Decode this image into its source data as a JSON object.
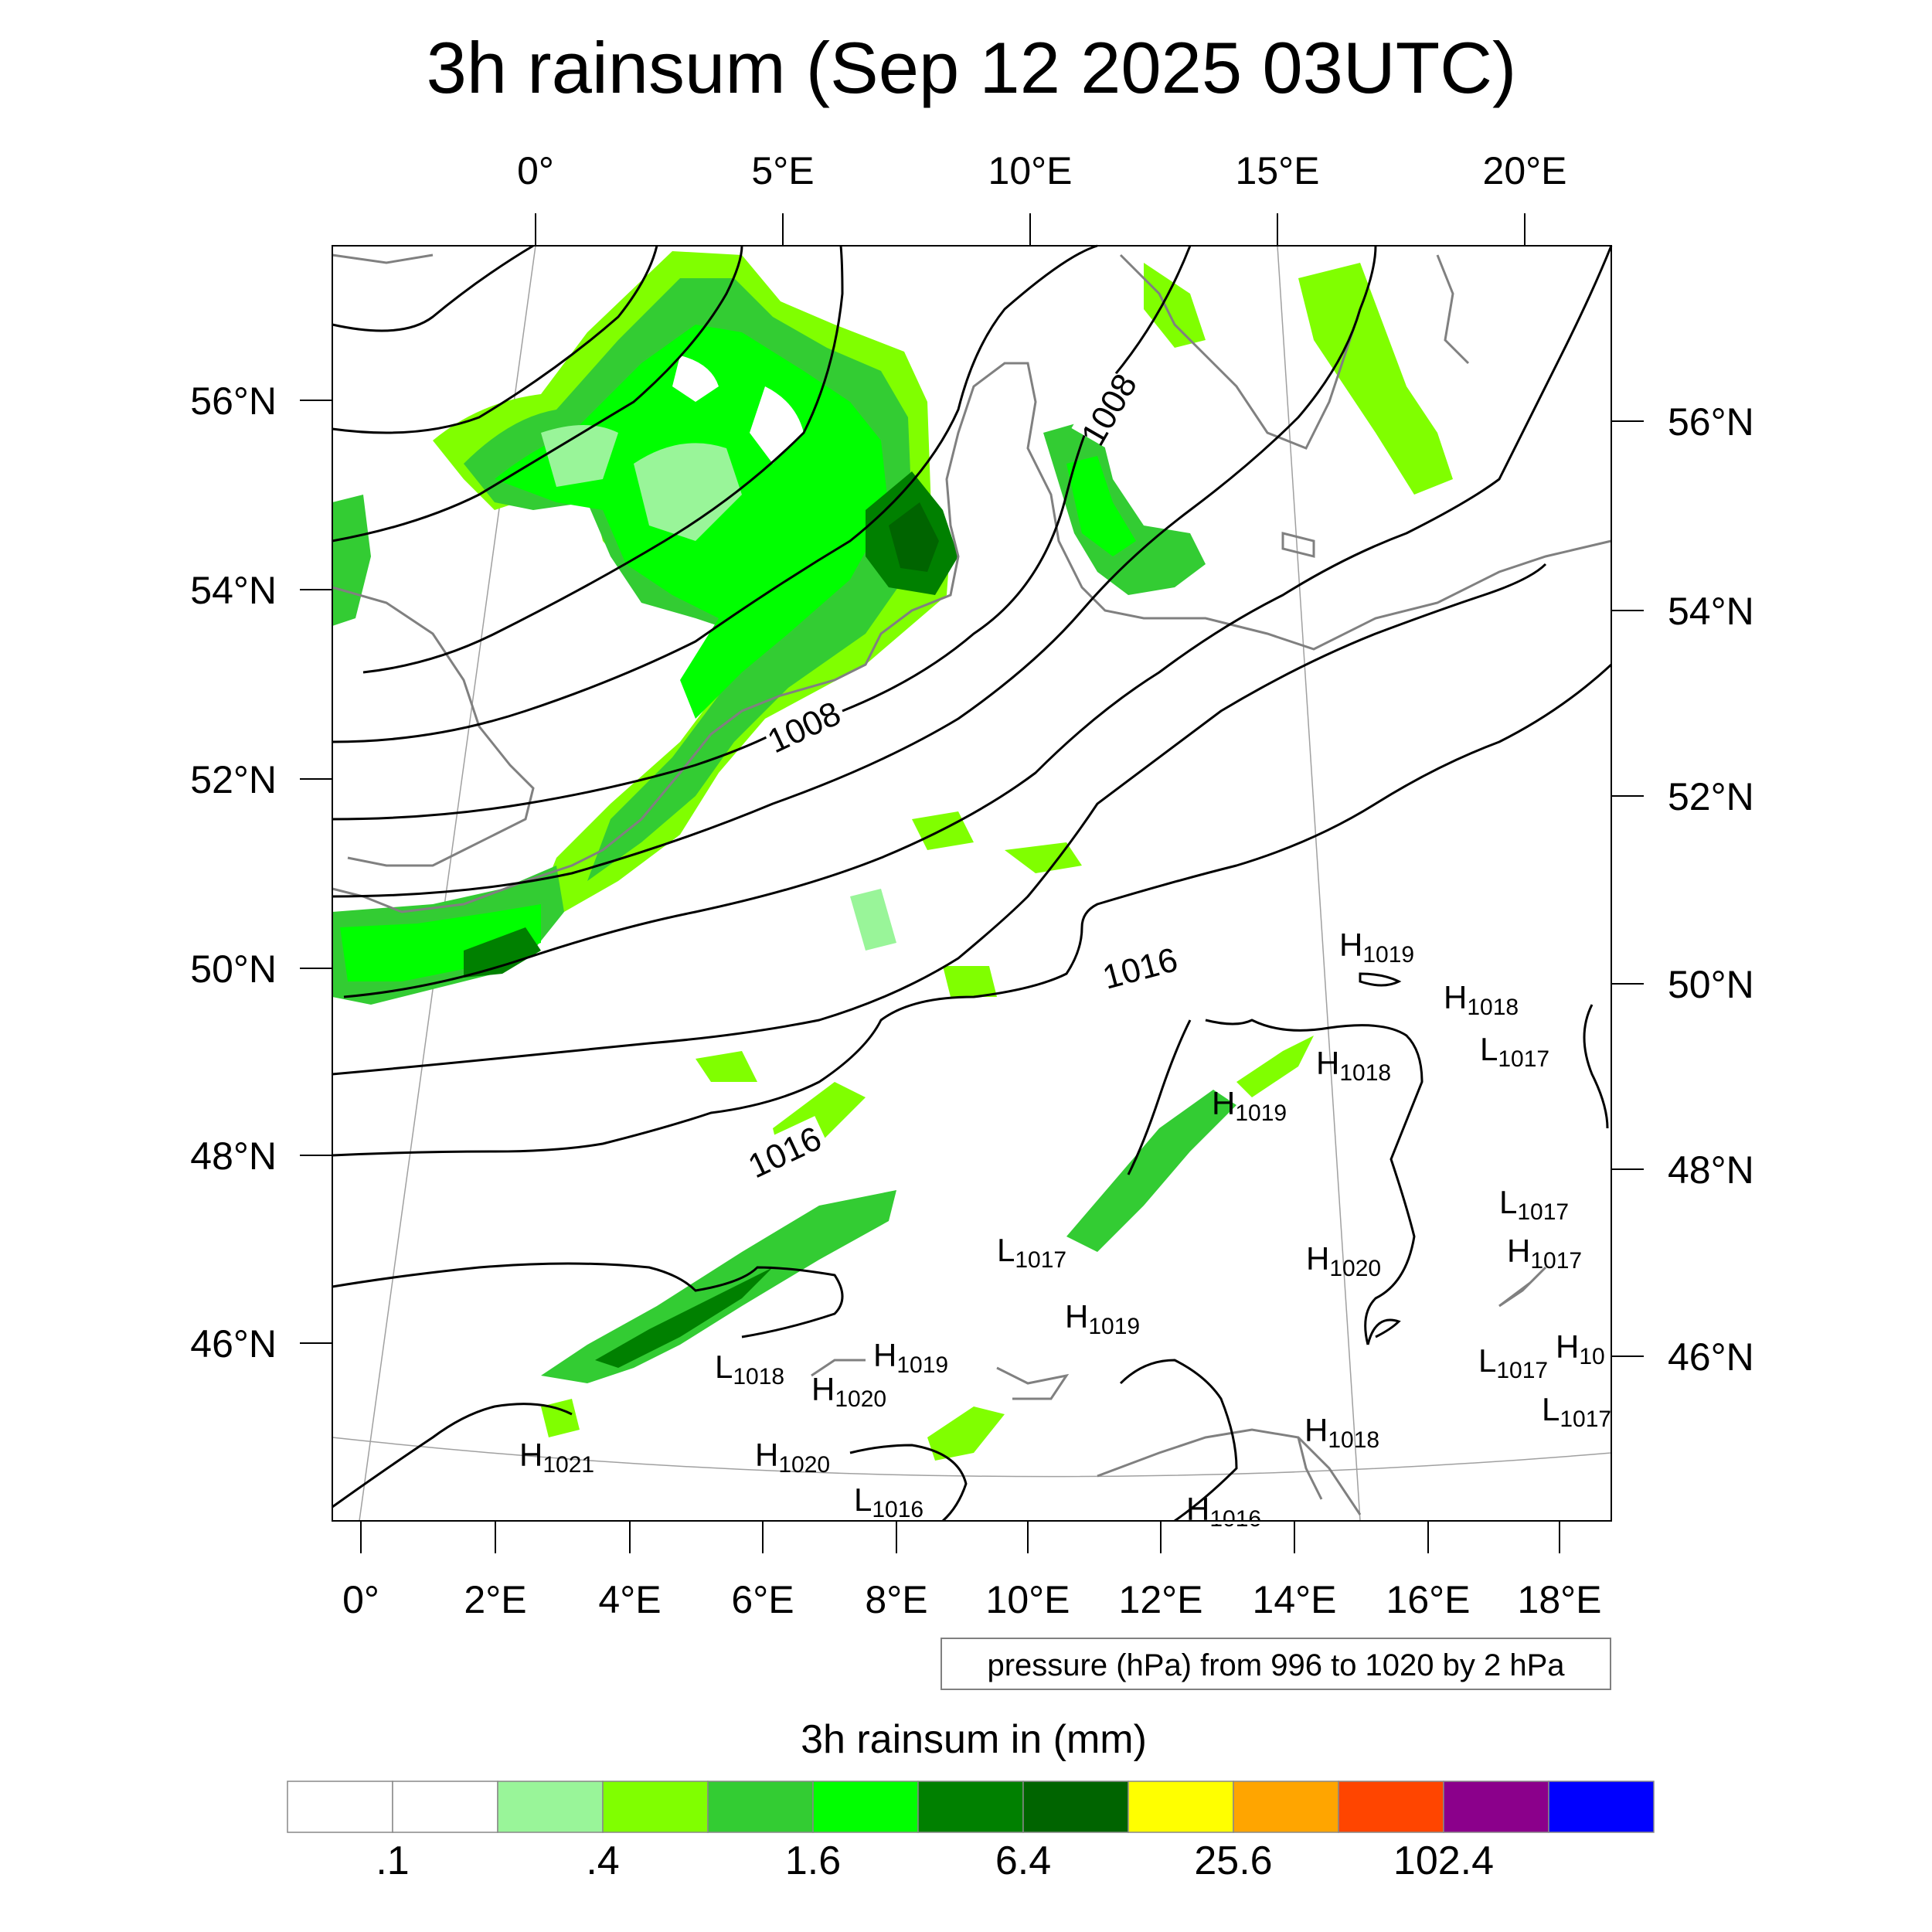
{
  "title": "3h rainsum (Sep 12 2025 03UTC)",
  "top_lon_labels": [
    "0°",
    "5°E",
    "10°E",
    "15°E",
    "20°E"
  ],
  "bottom_lon_labels": [
    "0°",
    "2°E",
    "4°E",
    "6°E",
    "8°E",
    "10°E",
    "12°E",
    "14°E",
    "16°E",
    "18°E"
  ],
  "left_lat_labels": [
    "56°N",
    "54°N",
    "52°N",
    "50°N",
    "48°N",
    "46°N"
  ],
  "right_lat_labels": [
    "56°N",
    "54°N",
    "52°N",
    "50°N",
    "48°N",
    "46°N"
  ],
  "contour_labels": [
    "1008",
    "1008",
    "1016",
    "1016"
  ],
  "pressure_centers": [
    {
      "type": "H",
      "value": "1019"
    },
    {
      "type": "H",
      "value": "1018"
    },
    {
      "type": "L",
      "value": "1017"
    },
    {
      "type": "H",
      "value": "1018"
    },
    {
      "type": "H",
      "value": "1019"
    },
    {
      "type": "L",
      "value": "1017"
    },
    {
      "type": "L",
      "value": "1017"
    },
    {
      "type": "H",
      "value": "1017"
    },
    {
      "type": "H",
      "value": "1020"
    },
    {
      "type": "H",
      "value": "1019"
    },
    {
      "type": "L",
      "value": "1017"
    },
    {
      "type": "H",
      "value": "10"
    },
    {
      "type": "L",
      "value": "1017"
    },
    {
      "type": "H",
      "value": "1019"
    },
    {
      "type": "L",
      "value": "1018"
    },
    {
      "type": "H",
      "value": "1020"
    },
    {
      "type": "H",
      "value": "1018"
    },
    {
      "type": "H",
      "value": "1020"
    },
    {
      "type": "H",
      "value": "1021"
    },
    {
      "type": "L",
      "value": "1016"
    },
    {
      "type": "H",
      "value": "1016"
    }
  ],
  "contour_note": "pressure (hPa) from 996 to 1020 by 2 hPa",
  "colorbar": {
    "title": "3h rainsum in (mm)",
    "labels": [
      ".1",
      ".4",
      "1.6",
      "6.4",
      "25.6",
      "102.4"
    ],
    "colors": [
      "#ffffff",
      "#ffffff",
      "#99f599",
      "#80ff00",
      "#33cc33",
      "#00ff00",
      "#008000",
      "#006400",
      "#ffff00",
      "#ffa500",
      "#ff4500",
      "#8b008b",
      "#0000ff"
    ]
  },
  "colors": {
    "coastline": "#808080",
    "isobar": "#000000",
    "graticule": "#a0a0a0",
    "frame": "#000000"
  }
}
